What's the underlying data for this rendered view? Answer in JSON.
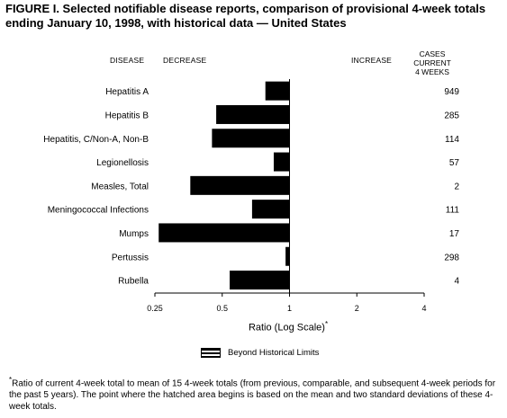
{
  "title": "FIGURE I. Selected notifiable disease reports, comparison of provisional 4-week totals ending January 10, 1998, with historical data — United States",
  "headers": {
    "disease": "DISEASE",
    "decrease": "DECREASE",
    "increase": "INCREASE",
    "cases_line1": "CASES CURRENT",
    "cases_line2": "4 WEEKS"
  },
  "axis": {
    "title": "Ratio (Log Scale)",
    "title_marker": "*"
  },
  "legend": {
    "label": "Beyond Historical Limits"
  },
  "footnote": {
    "marker": "*",
    "text": "Ratio of current 4-week total to mean of 15 4-week totals (from previous, comparable, and subsequent 4-week periods for the past 5 years). The point where the hatched area begins is based on the mean and two standard deviations of these 4-week totals."
  },
  "chart_data": {
    "type": "bar",
    "orientation": "horizontal",
    "scale": "log",
    "baseline": 1,
    "xlim": [
      0.25,
      4
    ],
    "xticks": [
      0.25,
      0.5,
      1,
      2,
      4
    ],
    "xtick_labels": [
      "0.25",
      "0.5",
      "1",
      "2",
      "4"
    ],
    "categories": [
      "Hepatitis A",
      "Hepatitis B",
      "Hepatitis, C/Non-A, Non-B",
      "Legionellosis",
      "Measles, Total",
      "Meningococcal Infections",
      "Mumps",
      "Pertussis",
      "Rubella"
    ],
    "values": [
      0.78,
      0.47,
      0.45,
      0.85,
      0.36,
      0.68,
      0.26,
      0.96,
      0.54
    ],
    "cases_current_4_weeks": [
      "949",
      "285",
      "114",
      "57",
      "2",
      "111",
      "17",
      "298",
      "4"
    ],
    "bar_color": "#000000"
  }
}
